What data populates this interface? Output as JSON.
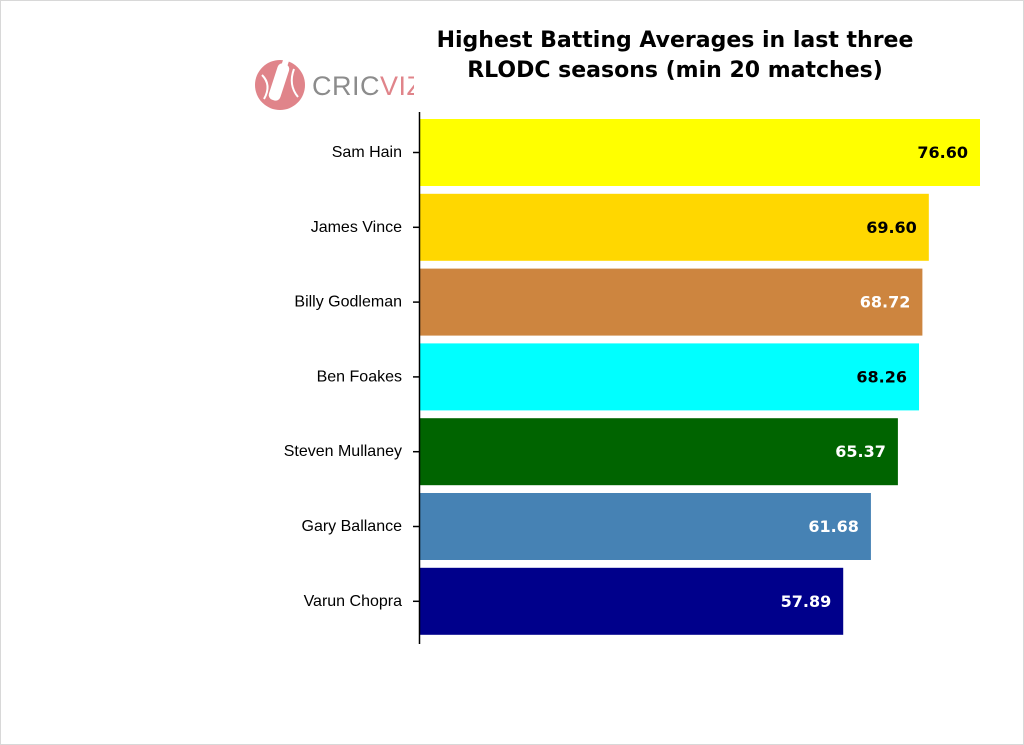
{
  "chart_data": {
    "type": "bar",
    "orientation": "horizontal",
    "title_line1": "Highest Batting Averages in last three",
    "title_line2": "RLODC seasons (min 20 matches)",
    "categories": [
      "Sam Hain",
      "James Vince",
      "Billy Godleman",
      "Ben Foakes",
      "Steven Mullaney",
      "Gary Ballance",
      "Varun Chopra"
    ],
    "values": [
      76.6,
      69.6,
      68.72,
      68.26,
      65.37,
      61.68,
      57.89
    ],
    "value_labels": [
      "76.60",
      "69.60",
      "68.72",
      "68.26",
      "65.37",
      "61.68",
      "57.89"
    ],
    "colors": [
      "#ffff00",
      "#ffd700",
      "#cd853f",
      "#00ffff",
      "#006400",
      "#4682b4",
      "#00008b"
    ],
    "label_colors": [
      "#000000",
      "#000000",
      "#ffffff",
      "#000000",
      "#ffffff",
      "#ffffff",
      "#ffffff"
    ],
    "xlim": [
      0,
      76.6
    ],
    "grid": false,
    "x_axis_visible": false
  },
  "logo": {
    "text_left": "CRIC",
    "text_right": "VIZ",
    "color": "#e0848a"
  }
}
